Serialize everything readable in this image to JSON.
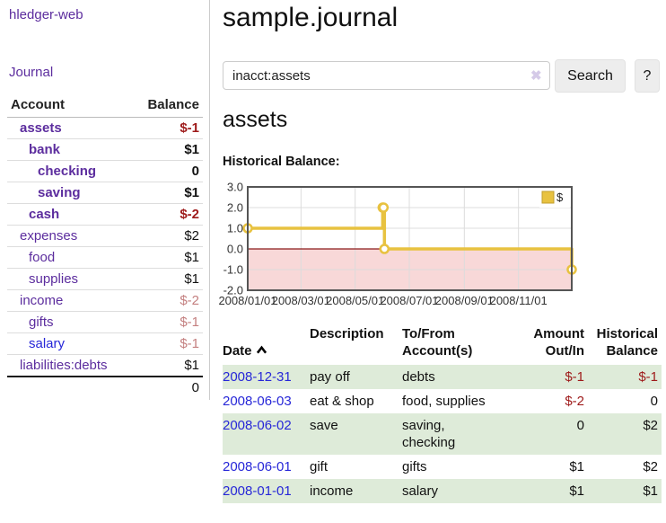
{
  "app": {
    "brand": "hledger-web"
  },
  "sidebar": {
    "nav": {
      "journal_label": "Journal"
    },
    "accounts_table": {
      "headers": {
        "account": "Account",
        "balance": "Balance"
      },
      "rows": [
        {
          "name": "assets",
          "balance": "$-1",
          "depth_class": "d1",
          "name_class": "b",
          "balance_class": "b neg"
        },
        {
          "name": "bank",
          "balance": "$1",
          "depth_class": "d2",
          "name_class": "b",
          "balance_class": "b"
        },
        {
          "name": "checking",
          "balance": "0",
          "depth_class": "d3",
          "name_class": "b",
          "balance_class": "b"
        },
        {
          "name": "saving",
          "balance": "$1",
          "depth_class": "d3",
          "name_class": "b",
          "balance_class": "b"
        },
        {
          "name": "cash",
          "balance": "$-2",
          "depth_class": "d2",
          "name_class": "b",
          "balance_class": "b neg"
        },
        {
          "name": "expenses",
          "balance": "$2",
          "depth_class": "d1",
          "name_class": "",
          "balance_class": ""
        },
        {
          "name": "food",
          "balance": "$1",
          "depth_class": "d2",
          "name_class": "",
          "balance_class": ""
        },
        {
          "name": "supplies",
          "balance": "$1",
          "depth_class": "d2",
          "name_class": "",
          "balance_class": ""
        },
        {
          "name": "income",
          "balance": "$-2",
          "depth_class": "d1",
          "name_class": "",
          "balance_class": "negsoft"
        },
        {
          "name": "gifts",
          "balance": "$-1",
          "depth_class": "d2",
          "name_class": "",
          "balance_class": "negsoft"
        },
        {
          "name": "salary",
          "balance": "$-1",
          "depth_class": "d2",
          "name_class": "blue",
          "balance_class": "negsoft"
        },
        {
          "name": "liabilities:debts",
          "balance": "$1",
          "depth_class": "d1",
          "name_class": "",
          "balance_class": ""
        }
      ],
      "total": "0"
    }
  },
  "main": {
    "title": "sample.journal",
    "search": {
      "value": "inacct:assets",
      "clear_icon": "✖",
      "button_label": "Search",
      "help_label": "?"
    },
    "account_heading": "assets",
    "chart_label": "Historical Balance:"
  },
  "chart_data": {
    "type": "line",
    "step": true,
    "title": "Historical Balance",
    "xlabel": "",
    "ylabel": "",
    "ylim": [
      -2,
      3
    ],
    "x_range_days": [
      0,
      365
    ],
    "grid": true,
    "legend_position": "top-right",
    "legend": [
      {
        "label": "$",
        "color": "#e8c240",
        "border": "#c19e2b"
      }
    ],
    "y_ticks": [
      {
        "label": "3.0",
        "value": 3
      },
      {
        "label": "2.0",
        "value": 2
      },
      {
        "label": "1.0",
        "value": 1
      },
      {
        "label": "0.0",
        "value": 0
      },
      {
        "label": "-1.0",
        "value": -1
      },
      {
        "label": "-2.0",
        "value": -2
      }
    ],
    "x_ticks": [
      {
        "label": "2008/01/01",
        "day": 0
      },
      {
        "label": "2008/03/01",
        "day": 60
      },
      {
        "label": "2008/05/01",
        "day": 121
      },
      {
        "label": "2008/07/01",
        "day": 182
      },
      {
        "label": "2008/09/01",
        "day": 244
      },
      {
        "label": "2008/11/01",
        "day": 305
      }
    ],
    "series": [
      {
        "name": "$",
        "color": "#e8c240",
        "points": [
          {
            "date": "2008-01-01",
            "day": 0,
            "value": 1
          },
          {
            "date": "2008-06-01",
            "day": 152,
            "value": 2
          },
          {
            "date": "2008-06-02",
            "day": 153,
            "value": 2
          },
          {
            "date": "2008-06-03",
            "day": 154,
            "value": 0
          },
          {
            "date": "2008-12-31",
            "day": 365,
            "value": -1
          }
        ]
      }
    ],
    "negative_region_fill": "#f8d8d8",
    "zero_line_color": "#8b1a1a",
    "marker_fill": "#ffffff",
    "grid_color": "#dcdcdc",
    "border_color": "#555555"
  },
  "register_table": {
    "headers": {
      "date": "Date",
      "description": "Description",
      "accounts": "To/From\nAccount(s)",
      "amount": "Amount\nOut/In",
      "balance": "Historical\nBalance"
    },
    "rows": [
      {
        "date": "2008-12-31",
        "description": "pay off",
        "accounts": "debts",
        "amount": "$-1",
        "balance": "$-1",
        "row_class": "striped",
        "amount_class": "neg",
        "balance_class": "neg"
      },
      {
        "date": "2008-06-03",
        "description": "eat & shop",
        "accounts": "food, supplies",
        "amount": "$-2",
        "balance": "0",
        "row_class": "",
        "amount_class": "neg",
        "balance_class": ""
      },
      {
        "date": "2008-06-02",
        "description": "save",
        "accounts": "saving,\nchecking",
        "amount": "0",
        "balance": "$2",
        "row_class": "striped",
        "amount_class": "",
        "balance_class": ""
      },
      {
        "date": "2008-06-01",
        "description": "gift",
        "accounts": "gifts",
        "amount": "$1",
        "balance": "$2",
        "row_class": "",
        "amount_class": "",
        "balance_class": ""
      },
      {
        "date": "2008-01-01",
        "description": "income",
        "accounts": "salary",
        "amount": "$1",
        "balance": "$1",
        "row_class": "striped",
        "amount_class": "",
        "balance_class": ""
      }
    ]
  }
}
